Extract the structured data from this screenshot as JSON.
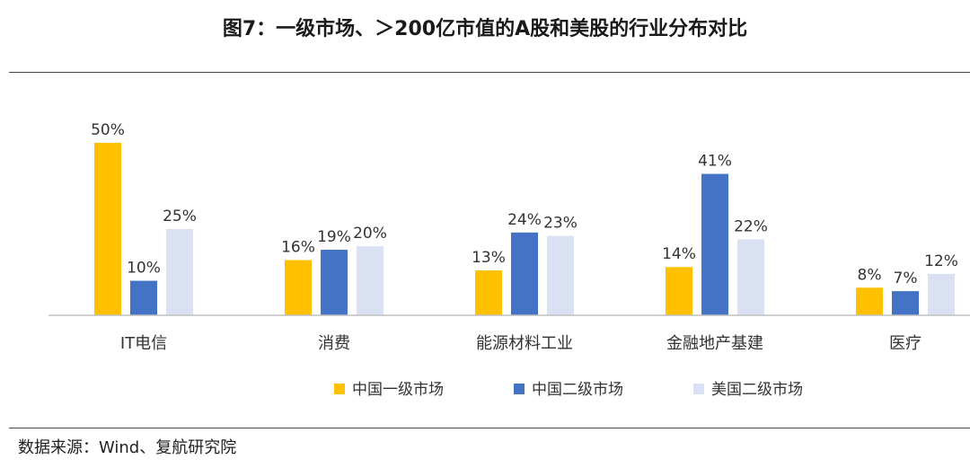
{
  "title": "图7：一级市场、＞200亿市值的A股和美股的行业分布对比",
  "source": "数据来源：Wind、复航研究院",
  "colors": {
    "primary_cn": "#FFC000",
    "secondary_cn": "#4472C4",
    "secondary_us": "#D9E1F2",
    "axis": "#BFBFBF"
  },
  "chart_data": {
    "type": "bar",
    "categories": [
      "IT电信",
      "消费",
      "能源材料工业",
      "金融地产基建",
      "医疗"
    ],
    "series": [
      {
        "name": "中国一级市场",
        "values": [
          50,
          16,
          13,
          14,
          8
        ],
        "labels": [
          "50%",
          "16%",
          "13%",
          "14%",
          "8%"
        ],
        "color": "#FFC000"
      },
      {
        "name": "中国二级市场",
        "values": [
          10,
          19,
          24,
          41,
          7
        ],
        "labels": [
          "10%",
          "19%",
          "24%",
          "41%",
          "7%"
        ],
        "color": "#4472C4"
      },
      {
        "name": "美国二级市场",
        "values": [
          25,
          20,
          23,
          22,
          12
        ],
        "labels": [
          "25%",
          "20%",
          "23%",
          "22%",
          "12%"
        ],
        "color": "#D9E1F2"
      }
    ],
    "ylim": [
      0,
      50
    ],
    "grid": false,
    "legend_position": "bottom"
  }
}
